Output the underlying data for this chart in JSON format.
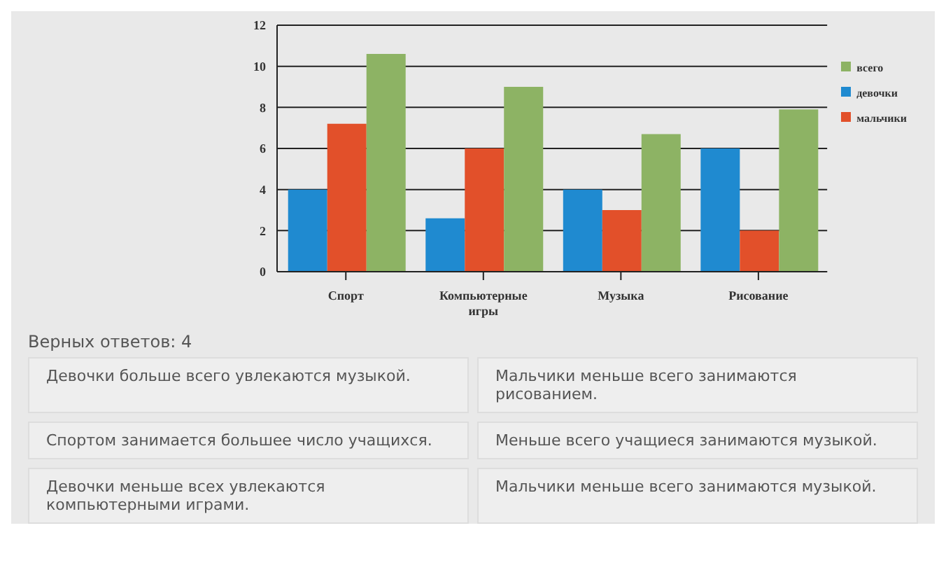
{
  "chart_data": {
    "type": "bar",
    "categories": [
      "Спорт",
      "Компьютерные игры",
      "Музыка",
      "Рисование"
    ],
    "series": [
      {
        "name": "девочки",
        "color": "#1f8ad0",
        "values": [
          4,
          2.6,
          4,
          6
        ]
      },
      {
        "name": "мальчики",
        "color": "#e2502a",
        "values": [
          7.2,
          6,
          3,
          2
        ]
      },
      {
        "name": "всего",
        "color": "#8db364",
        "values": [
          10.6,
          9,
          6.7,
          7.9
        ]
      }
    ],
    "ylim": [
      0,
      12
    ],
    "yticks": [
      0,
      2,
      4,
      6,
      8,
      10,
      12
    ],
    "grid": "y",
    "legend": "right",
    "annotations": [
      "Верных ответов: 4",
      "Девочки больше всего увлекаются музыкой.",
      "Мальчики меньше всего занимаются рисованием.",
      "Спортом занимается большее число учащихся.",
      "Меньше всего учащиеся занимаются музыкой.",
      "Девочки меньше всех увлекаются компьютерными играми.",
      "Мальчики меньше всего занимаются музыкой."
    ]
  }
}
